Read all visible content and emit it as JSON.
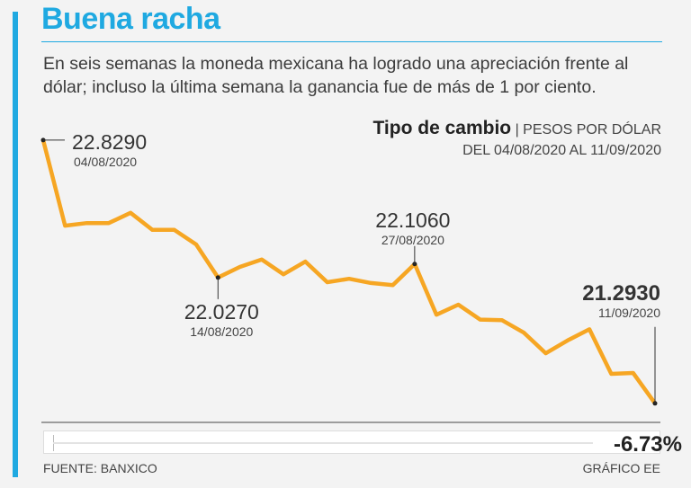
{
  "title": "Buena racha",
  "subtitle": "En seis semanas la moneda mexicana ha logrado una apreciación frente al dólar; incluso la última semana la ganancia fue de más de 1 por ciento.",
  "chart_header": {
    "title": "Tipo de cambio",
    "separator": "|",
    "unit": "PESOS POR DÓLAR",
    "range": "DEL 04/08/2020 AL 11/09/2020"
  },
  "colors": {
    "accent": "#1fa9e1",
    "line": "#f6a623",
    "text": "#333333"
  },
  "chart_data": {
    "type": "line",
    "title": "Tipo de cambio",
    "ylabel": "PESOS POR DÓLAR",
    "xlabel": "",
    "grid": false,
    "ylim": [
      21.25,
      22.86
    ],
    "x": [
      "04/08/2020",
      "05/08/2020",
      "06/08/2020",
      "07/08/2020",
      "10/08/2020",
      "11/08/2020",
      "12/08/2020",
      "13/08/2020",
      "14/08/2020",
      "17/08/2020",
      "18/08/2020",
      "19/08/2020",
      "20/08/2020",
      "21/08/2020",
      "24/08/2020",
      "25/08/2020",
      "26/08/2020",
      "27/08/2020",
      "28/08/2020",
      "31/08/2020",
      "01/09/2020",
      "02/09/2020",
      "03/09/2020",
      "04/09/2020",
      "07/09/2020",
      "08/09/2020",
      "09/09/2020",
      "10/09/2020",
      "11/09/2020"
    ],
    "series": [
      {
        "values": [
          22.829,
          22.33,
          22.345,
          22.345,
          22.405,
          22.305,
          22.305,
          22.22,
          22.027,
          22.089,
          22.132,
          22.046,
          22.12,
          22.0,
          22.02,
          21.995,
          21.983,
          22.106,
          21.81,
          21.869,
          21.782,
          21.778,
          21.705,
          21.585,
          21.66,
          21.725,
          21.465,
          21.47,
          21.293
        ]
      }
    ],
    "annotations": [
      {
        "value": "22.8290",
        "date": "04/08/2020",
        "index": 0
      },
      {
        "value": "22.0270",
        "date": "14/08/2020",
        "index": 8
      },
      {
        "value": "22.1060",
        "date": "27/08/2020",
        "index": 17
      },
      {
        "value": "21.2930",
        "date": "11/09/2020",
        "index": 28
      }
    ],
    "change": "-6.73%"
  },
  "footer": {
    "source": "FUENTE: BANXICO",
    "credit": "GRÁFICO EE"
  }
}
